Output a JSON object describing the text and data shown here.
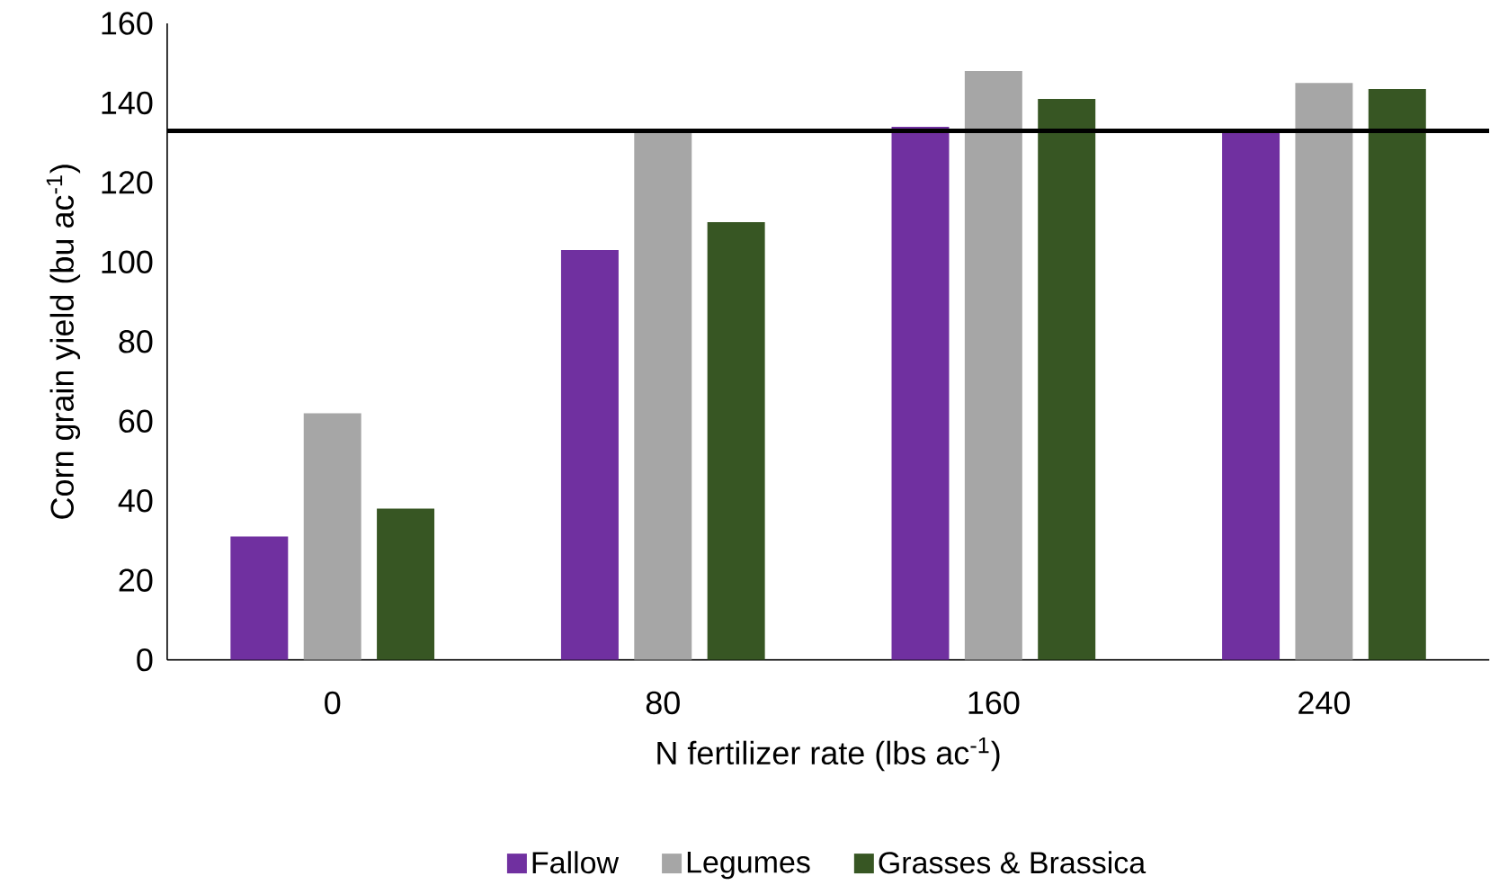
{
  "chart_data": {
    "type": "bar",
    "xlabel": "N fertilizer rate (lbs ac$^{-1}$)",
    "ylabel": "Corn grain yield (bu ac$^{-1}$)",
    "categories": [
      "0",
      "80",
      "160",
      "240"
    ],
    "series": [
      {
        "name": "Fallow",
        "color": "#7030a0",
        "values": [
          31,
          103,
          134,
          133
        ]
      },
      {
        "name": "Legumes",
        "color": "#a6a6a6",
        "values": [
          62,
          133,
          148,
          145
        ]
      },
      {
        "name": "Grasses & Brassica",
        "color": "#375623",
        "values": [
          38,
          110,
          141,
          143.5
        ]
      }
    ],
    "ylim": [
      0,
      160
    ],
    "yticks": [
      0,
      20,
      40,
      60,
      80,
      100,
      120,
      140,
      160
    ],
    "ref_lines": [
      {
        "axis": "y",
        "value": 133,
        "color": "#000000"
      }
    ],
    "legend": "bottom",
    "grid": false
  }
}
